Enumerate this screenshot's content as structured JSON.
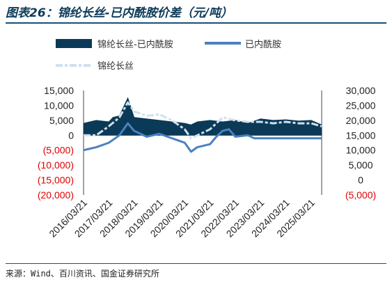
{
  "title": "图表26：锦纶长丝-已内酰胺价差（元/吨）",
  "source": "来源：Wind、百川资讯、国金证券研究所",
  "colors": {
    "spread_area": "#0b3a58",
    "caprolactam_line": "#4a81bf",
    "nylon_line": "#cfe0ee",
    "negative_tick": "#e00000",
    "title": "#0b3a58"
  },
  "chart_data": {
    "type": "area",
    "left_axis": {
      "ylim": [
        -20000,
        15000
      ],
      "ticks": [
        "15,000",
        "10,000",
        "5,000",
        "0",
        "(5,000)",
        "(10,000)",
        "(15,000)",
        "(20,000)"
      ]
    },
    "right_axis": {
      "ylim": [
        -5000,
        30000
      ],
      "ticks": [
        "30,000",
        "25,000",
        "20,000",
        "15,000",
        "10,000",
        "5,000",
        "0",
        "(5,000)"
      ]
    },
    "x_ticks": [
      "2016/03/21",
      "2017/03/21",
      "2018/03/21",
      "2019/03/21",
      "2020/03/21",
      "2021/03/21",
      "2022/03/21",
      "2023/03/21",
      "2024/03/21",
      "2025/03/21"
    ],
    "x_range": [
      "2016/01",
      "2025/06"
    ],
    "series": [
      {
        "name": "锦纶长丝-已内酰胺",
        "axis": "left",
        "style": "area",
        "x": [
          "2016/01",
          "2016/07",
          "2017/01",
          "2017/03",
          "2017/06",
          "2017/10",
          "2018/01",
          "2018/07",
          "2019/01",
          "2019/07",
          "2020/01",
          "2020/04",
          "2020/07",
          "2021/01",
          "2021/07",
          "2022/01",
          "2022/07",
          "2023/01",
          "2023/07",
          "2024/01",
          "2024/07",
          "2025/01",
          "2025/06"
        ],
        "values": [
          4000,
          5000,
          4500,
          6000,
          6500,
          12500,
          6000,
          5500,
          5000,
          4500,
          4000,
          3500,
          4500,
          5000,
          4500,
          5000,
          4000,
          5500,
          5000,
          5200,
          4800,
          5000,
          3500
        ]
      },
      {
        "name": "已内酰胺",
        "axis": "right",
        "style": "line",
        "x": [
          "2016/01",
          "2016/07",
          "2017/01",
          "2017/06",
          "2017/10",
          "2018/01",
          "2018/07",
          "2019/01",
          "2019/07",
          "2020/01",
          "2020/04",
          "2020/07",
          "2021/01",
          "2021/04",
          "2021/07",
          "2021/10",
          "2022/01",
          "2022/07",
          "2022/10",
          "2023/01",
          "2025/06"
        ],
        "values": [
          10000,
          11000,
          12500,
          15000,
          19000,
          16500,
          14500,
          15500,
          14000,
          12500,
          9500,
          11000,
          12000,
          14500,
          16500,
          17000,
          14500,
          15000,
          14000,
          14000,
          14000
        ]
      },
      {
        "name": "锦纶长丝",
        "axis": "right",
        "style": "line",
        "x": [
          "2016/01",
          "2016/07",
          "2017/01",
          "2017/06",
          "2017/10",
          "2018/01",
          "2018/07",
          "2019/01",
          "2019/07",
          "2020/01",
          "2020/04",
          "2020/07",
          "2021/01",
          "2021/07",
          "2022/01",
          "2022/07",
          "2023/01",
          "2023/07",
          "2024/01",
          "2024/07",
          "2025/01",
          "2025/06"
        ],
        "values": [
          15000,
          15000,
          18000,
          21000,
          26000,
          23000,
          21500,
          22000,
          20000,
          17000,
          14000,
          15000,
          17000,
          21000,
          20000,
          19500,
          19500,
          19000,
          19500,
          19000,
          19000,
          18000
        ]
      }
    ]
  }
}
